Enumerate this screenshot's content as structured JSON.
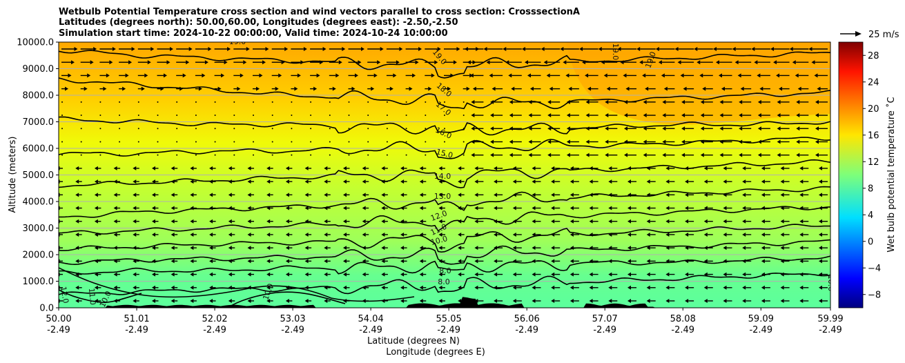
{
  "chart_data": {
    "type": "heatmap",
    "title_lines": [
      "Wetbulb Potential Temperature cross section and wind vectors parallel to cross section: CrosssectionA",
      "Latitudes (degrees north): 50.00,60.00, Longitudes (degrees east): -2.50,-2.50",
      "Simulation start time: 2024-10-22 00:00:00, Valid time: 2024-10-24 10:00:00"
    ],
    "ylabel": "Altitude (meters)",
    "xlabel_lines": [
      "Latitude (degrees N)",
      "Longitude (degrees E)"
    ],
    "ylim": [
      0,
      10000
    ],
    "xlim": [
      50.0,
      59.99
    ],
    "ytick_labels": [
      "0.0",
      "1000.0",
      "2000.0",
      "3000.0",
      "4000.0",
      "5000.0",
      "6000.0",
      "7000.0",
      "8000.0",
      "9000.0",
      "10000.0"
    ],
    "xticks": [
      {
        "lat": "50.00",
        "lon": "-2.49"
      },
      {
        "lat": "51.01",
        "lon": "-2.49"
      },
      {
        "lat": "52.02",
        "lon": "-2.49"
      },
      {
        "lat": "53.03",
        "lon": "-2.49"
      },
      {
        "lat": "54.04",
        "lon": "-2.49"
      },
      {
        "lat": "55.05",
        "lon": "-2.49"
      },
      {
        "lat": "56.06",
        "lon": "-2.49"
      },
      {
        "lat": "57.07",
        "lon": "-2.49"
      },
      {
        "lat": "58.08",
        "lon": "-2.49"
      },
      {
        "lat": "59.09",
        "lon": "-2.49"
      },
      {
        "lat": "59.99",
        "lon": "-2.49"
      }
    ],
    "grid": "horizontal",
    "colorbar": {
      "label": "Wet bulb potential temperature ˚C",
      "range": [
        -10,
        30
      ],
      "tick_labels": [
        "−8",
        "−4",
        "0",
        "4",
        "8",
        "12",
        "16",
        "20",
        "24",
        "28"
      ],
      "colormap": "jet"
    },
    "wind_key": {
      "label": "25 m/s",
      "speed": 25
    },
    "contour_labels": [
      "19.0",
      "19.0",
      "19.0",
      "19.0",
      "18.0",
      "17.0",
      "16.0",
      "15.0",
      "14.0",
      "13.0",
      "12.0",
      "11.0",
      "10.0",
      "8.0",
      "8.0",
      "12.0",
      "11.0",
      "10.0",
      "10.0",
      "10.0"
    ],
    "contour_levels": [
      {
        "level": 8,
        "alt": [
          500,
          600,
          700,
          700,
          800,
          900,
          900,
          1000,
          1100,
          1200,
          1300
        ]
      },
      {
        "level": 10,
        "alt": [
          1300,
          1400,
          1400,
          1500,
          1500,
          1600,
          1600,
          1700,
          1700,
          1800,
          1900
        ]
      },
      {
        "level": 11,
        "alt": [
          1700,
          1800,
          1850,
          1900,
          1950,
          2000,
          2100,
          2200,
          2300,
          2400,
          2500
        ]
      },
      {
        "level": 12,
        "alt": [
          2200,
          2300,
          2400,
          2450,
          2500,
          2600,
          2700,
          2800,
          2900,
          3000,
          3100
        ]
      },
      {
        "level": 13,
        "alt": [
          2800,
          2900,
          3000,
          3100,
          3200,
          3300,
          3400,
          3500,
          3600,
          3700,
          3800
        ]
      },
      {
        "level": 14,
        "alt": [
          3400,
          3600,
          3700,
          3800,
          3900,
          4000,
          4100,
          4200,
          4300,
          4400,
          4500
        ]
      },
      {
        "level": 15,
        "alt": [
          4600,
          4700,
          4800,
          4900,
          5000,
          5000,
          5100,
          5200,
          5300,
          5400,
          5500
        ]
      },
      {
        "level": 16,
        "alt": [
          5800,
          5800,
          5900,
          5900,
          6000,
          6000,
          6100,
          6100,
          6200,
          6300,
          6400
        ]
      },
      {
        "level": 17,
        "alt": [
          7100,
          7000,
          6900,
          6900,
          6800,
          6800,
          6700,
          6800,
          6900,
          6900,
          7000
        ]
      },
      {
        "level": 18,
        "alt": [
          8600,
          8400,
          8200,
          8000,
          7900,
          7800,
          7700,
          7800,
          7900,
          8000,
          8100
        ]
      },
      {
        "level": 19,
        "alt": [
          9700,
          9500,
          9400,
          9300,
          9200,
          9100,
          9200,
          9300,
          9400,
          9500,
          9600
        ]
      }
    ],
    "wind_vectors": "parallel to cross section; eastward (pointing right) above ~8000 m south of 55.05, westward (pointing left) elsewhere, strongest near the top north of 56.06"
  }
}
